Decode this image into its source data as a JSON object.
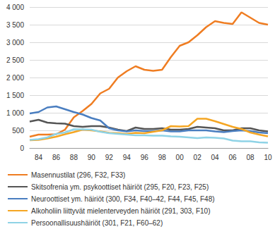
{
  "chart_data": {
    "type": "line",
    "categories": [
      null,
      "84",
      null,
      "86",
      null,
      "88",
      null,
      "90",
      null,
      "92",
      null,
      "94",
      null,
      "96",
      null,
      "98",
      null,
      "00",
      null,
      "02",
      null,
      "04",
      null,
      "06",
      null,
      "08",
      null,
      "10"
    ],
    "series": [
      {
        "name": "Masennustilat (296, F32, F33)",
        "color": "#ef7d22",
        "values": [
          320,
          380,
          380,
          390,
          520,
          870,
          1050,
          1250,
          1550,
          1680,
          2000,
          2180,
          2320,
          2220,
          2190,
          2220,
          2580,
          2900,
          3000,
          3200,
          3430,
          3600,
          3550,
          3520,
          3850,
          3700,
          3550,
          3500
        ]
      },
      {
        "name": "Skitsofrenia ym. psykoottiset häiriöt (295, F20, F23, F25)",
        "color": "#555555",
        "values": [
          750,
          800,
          720,
          700,
          690,
          620,
          600,
          620,
          620,
          580,
          520,
          480,
          580,
          540,
          540,
          560,
          520,
          520,
          540,
          600,
          580,
          560,
          500,
          500,
          560,
          560,
          500,
          470
        ]
      },
      {
        "name": "Neuroottiset ym. häiriöt (300, F34, F40–42, F44, F45, F48)",
        "color": "#4a7ec0",
        "values": [
          980,
          1020,
          1150,
          1180,
          1100,
          1020,
          950,
          850,
          780,
          560,
          500,
          470,
          500,
          480,
          480,
          500,
          470,
          470,
          500,
          500,
          500,
          470,
          450,
          480,
          500,
          480,
          440,
          420
        ]
      },
      {
        "name": "Alkoholiin liittyvät mielenterveyden häiriöt (291, 303, F10)",
        "color": "#f5a623",
        "values": [
          220,
          230,
          270,
          320,
          390,
          450,
          520,
          500,
          470,
          430,
          420,
          400,
          430,
          420,
          460,
          500,
          620,
          610,
          620,
          830,
          830,
          760,
          680,
          600,
          540,
          440,
          380,
          330
        ]
      },
      {
        "name": "Persoonallisuushäiriöt (301, F21, F60–62)",
        "color": "#8fd3e6",
        "values": [
          230,
          250,
          300,
          400,
          440,
          530,
          530,
          520,
          460,
          420,
          400,
          380,
          360,
          360,
          350,
          350,
          330,
          320,
          300,
          280,
          300,
          290,
          270,
          210,
          190,
          190,
          160,
          150
        ]
      }
    ],
    "ylim": [
      0,
      4000
    ],
    "yticks": [
      0,
      500,
      {
        "value": 1000,
        "label": "1 000"
      },
      {
        "value": 1500,
        "label": "1 500"
      },
      {
        "value": 2000,
        "label": "2 000"
      },
      {
        "value": 2500,
        "label": "2 500"
      },
      {
        "value": 3000,
        "label": "3 000"
      },
      {
        "value": 3500,
        "label": "3 500"
      },
      {
        "value": 4000,
        "label": "4 000"
      }
    ],
    "grid": true,
    "legend": "bottom"
  }
}
